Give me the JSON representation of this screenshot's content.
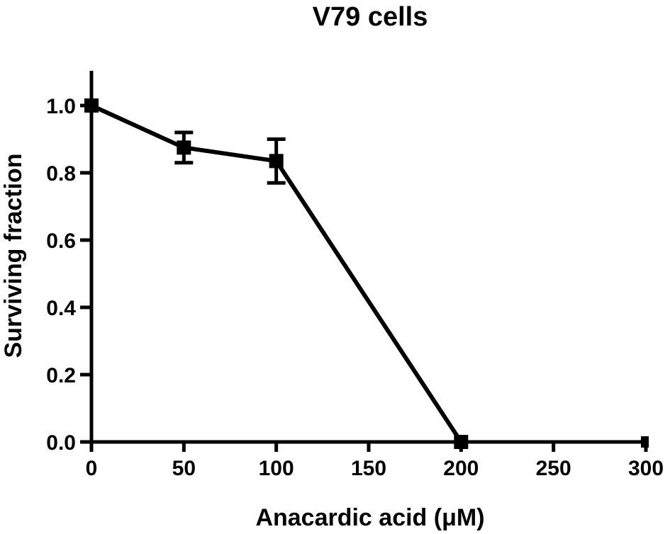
{
  "chart_data": {
    "type": "line",
    "title": "V79 cells",
    "xlabel": "Anacardic acid (μM)",
    "ylabel": "Surviving fraction",
    "xlim": [
      0,
      300
    ],
    "ylim": [
      0,
      1.1
    ],
    "x_ticks": [
      "0",
      "50",
      "100",
      "150",
      "200",
      "250",
      "300"
    ],
    "y_ticks": [
      "0.0",
      "0.2",
      "0.4",
      "0.6",
      "0.8",
      "1.0"
    ],
    "grid": false,
    "legend": "none",
    "series": [
      {
        "x": [
          0,
          50,
          100,
          200
        ],
        "y": [
          1.0,
          0.875,
          0.835,
          0.0
        ],
        "error": [
          0.0,
          0.045,
          0.065,
          0.0
        ]
      }
    ],
    "extra_points": [
      {
        "x": 300,
        "y": 0.0
      }
    ],
    "colors": {
      "line": "#000000"
    }
  }
}
